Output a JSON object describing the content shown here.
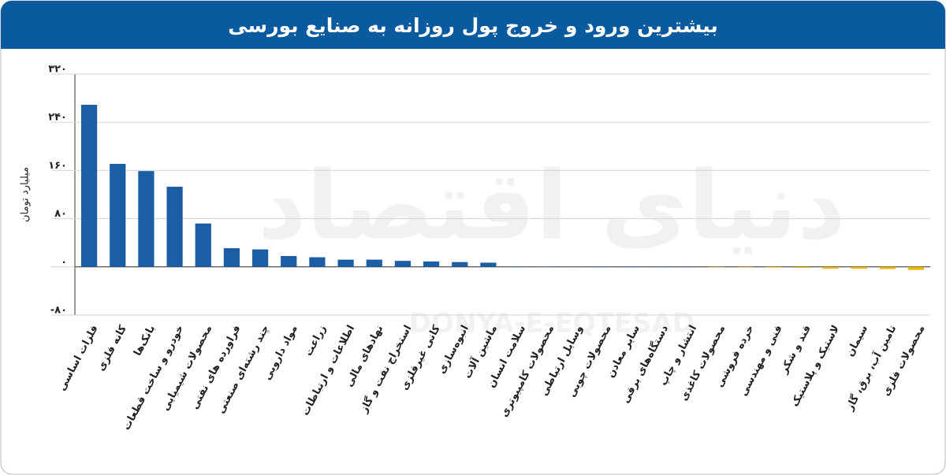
{
  "chart_data": {
    "type": "bar",
    "title": "بیشترین ورود و خروج پول روزانه به صنایع بورسی",
    "y_label": "میلیارد تومان",
    "watermark": "دنیای اقتصاد",
    "watermark_latin": "DONYA-E-EQTESAD",
    "categories": [
      "فلزات اساسی",
      "کانه فلزی",
      "بانک‌ها",
      "خودرو و ساخت قطعات",
      "محصولات شیمیایی",
      "فراورده های نفتی",
      "چند رشته‌ای صنعتی",
      "مواد دارویی",
      "زراعت",
      "اطلاعات و ارتباطات",
      "نهادهای مالی",
      "استخراج نفت و گاز",
      "کانی غیرفلزی",
      "انبوه‌سازی",
      "ماشین آلات",
      "سلامت انسان",
      "محصولات کامپیوتری",
      "وسایل ارتباطی",
      "محصولات چوبی",
      "سایر معادن",
      "دستگاه‌های برقی",
      "انتشار و چاپ",
      "محصولات کاغذی",
      "خرده فروشی",
      "فنی و مهندسی",
      "قند و شکر",
      "لاستیک و پلاستیک",
      "سیمان",
      "تامین آب، برق، گاز",
      "محصولات فلزی"
    ],
    "values": [
      269,
      171,
      159,
      133,
      72,
      31,
      29,
      18,
      16,
      12,
      12,
      10,
      9,
      8,
      7,
      0.5,
      0.4,
      0.3,
      0.2,
      0.1,
      0.1,
      0.1,
      -0.1,
      -0.3,
      -1,
      -1.5,
      -3,
      -3,
      -3.5,
      -5
    ],
    "colors": {
      "positive": "#1c5ea6",
      "negative": "#f0b400"
    },
    "ylim": [
      -80,
      320
    ],
    "yticks": [
      {
        "value": -80,
        "label": "-۸۰"
      },
      {
        "value": 0,
        "label": "۰"
      },
      {
        "value": 80,
        "label": "۸۰"
      },
      {
        "value": 160,
        "label": "۱۶۰"
      },
      {
        "value": 240,
        "label": "۲۴۰"
      },
      {
        "value": 320,
        "label": "۳۲۰"
      }
    ],
    "grid": true
  }
}
